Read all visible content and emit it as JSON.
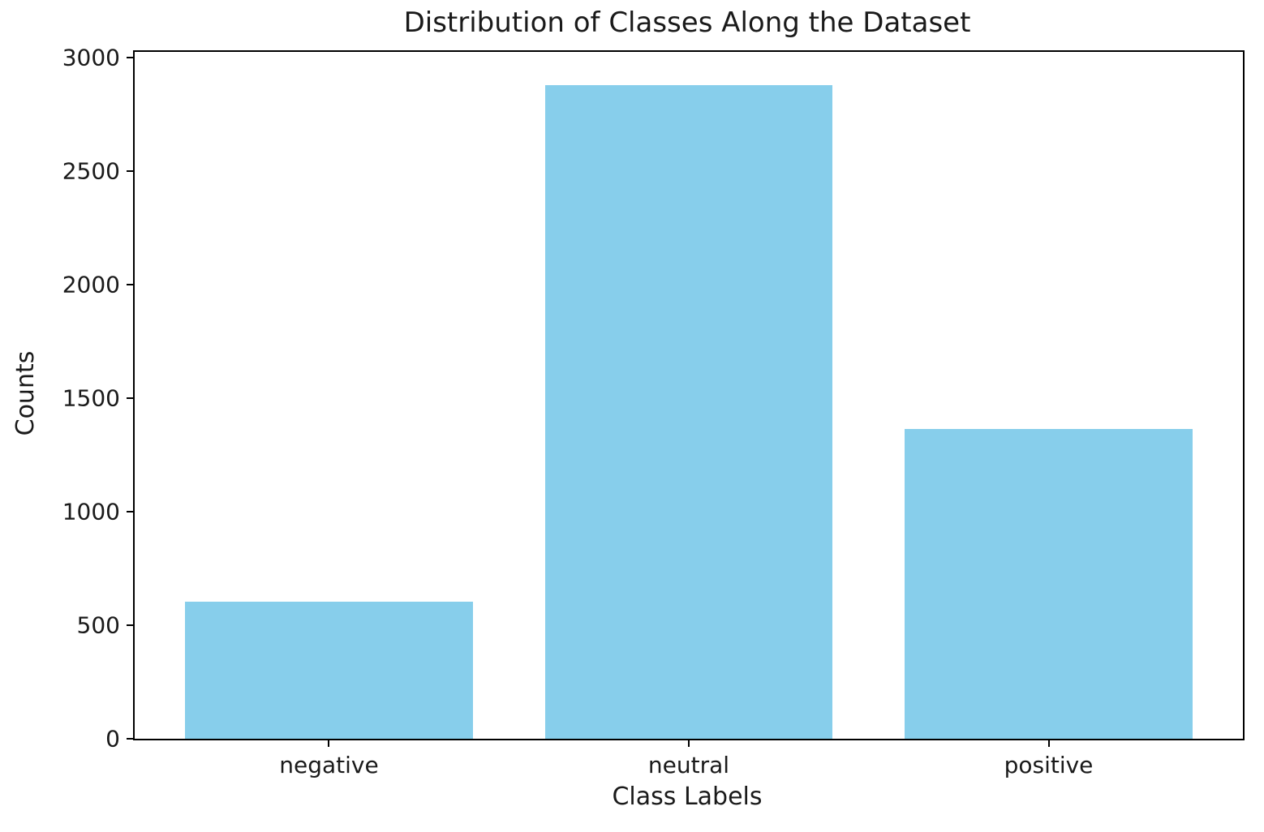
{
  "chart_data": {
    "type": "bar",
    "title": "Distribution of Classes Along the Dataset",
    "xlabel": "Class Labels",
    "ylabel": "Counts",
    "categories": [
      "negative",
      "neutral",
      "positive"
    ],
    "values": [
      604,
      2879,
      1363
    ],
    "ylim": [
      0,
      3025
    ],
    "yticks": [
      0,
      500,
      1000,
      1500,
      2000,
      2500,
      3000
    ],
    "bar_color": "#87CEEB",
    "grid": false,
    "legend": null
  },
  "colors": {
    "background": "#ffffff",
    "axis": "#000000",
    "text": "#1a1a1a",
    "bar": "#87CEEB"
  }
}
